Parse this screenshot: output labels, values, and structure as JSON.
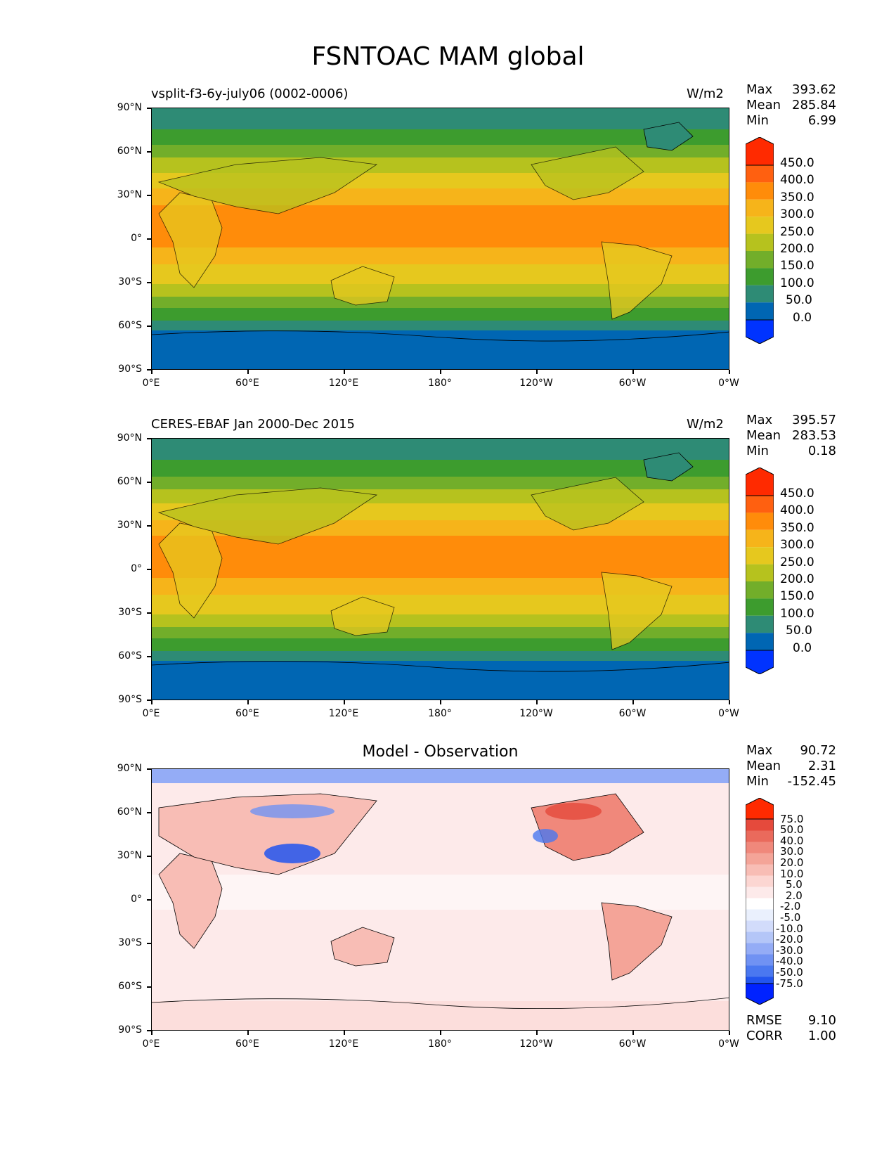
{
  "figure_title": "FSNTOAC MAM global",
  "panels": [
    {
      "title_left": "vsplit-f3-6y-july06 (0002-0006)",
      "units": "W/m2",
      "stats": [
        {
          "label": "Max",
          "value": "393.62"
        },
        {
          "label": "Mean",
          "value": "285.84"
        },
        {
          "label": "Min",
          "value": "6.99"
        }
      ],
      "colorbar_ticks": [
        "450.0",
        "400.0",
        "350.0",
        "300.0",
        "250.0",
        "200.0",
        "150.0",
        "100.0",
        "50.0",
        "0.0"
      ]
    },
    {
      "title_left": "CERES-EBAF Jan 2000-Dec 2015",
      "units": "W/m2",
      "stats": [
        {
          "label": "Max",
          "value": "395.57"
        },
        {
          "label": "Mean",
          "value": "283.53"
        },
        {
          "label": "Min",
          "value": "0.18"
        }
      ],
      "colorbar_ticks": [
        "450.0",
        "400.0",
        "350.0",
        "300.0",
        "250.0",
        "200.0",
        "150.0",
        "100.0",
        "50.0",
        "0.0"
      ]
    },
    {
      "title_center": "Model - Observation",
      "stats": [
        {
          "label": "Max",
          "value": "90.72"
        },
        {
          "label": "Mean",
          "value": "2.31"
        },
        {
          "label": "Min",
          "value": "-152.45"
        }
      ],
      "colorbar_ticks": [
        "75.0",
        "50.0",
        "40.0",
        "30.0",
        "20.0",
        "10.0",
        "5.0",
        "2.0",
        "-2.0",
        "-5.0",
        "-10.0",
        "-20.0",
        "-30.0",
        "-40.0",
        "-50.0",
        "-75.0"
      ],
      "metrics": [
        {
          "label": "RMSE",
          "value": "9.10"
        },
        {
          "label": "CORR",
          "value": "1.00"
        }
      ]
    }
  ],
  "lat_ticks": [
    "90°N",
    "60°N",
    "30°N",
    "0°",
    "30°S",
    "60°S",
    "90°S"
  ],
  "lon_ticks": [
    "0°E",
    "60°E",
    "120°E",
    "180°",
    "120°W",
    "60°W",
    "0°W"
  ],
  "colors": {
    "abs_levels": [
      "#0033ff",
      "#0066b3",
      "#2e8b75",
      "#3d9c2e",
      "#72ae2a",
      "#b6c21e",
      "#e6c81e",
      "#f6b41a",
      "#ff8c0a",
      "#ff6010",
      "#ff2a00"
    ],
    "diff_levels": [
      "#0022ff",
      "#2255ee",
      "#4a78f0",
      "#7092f3",
      "#94acf6",
      "#b4c6f8",
      "#d2dcfb",
      "#eaf0fd",
      "#ffffff",
      "#fdeaea",
      "#fcd6d2",
      "#f8bdb5",
      "#f4a498",
      "#f0887b",
      "#ea6a5c",
      "#e54a3c",
      "#ff2a00"
    ]
  }
}
